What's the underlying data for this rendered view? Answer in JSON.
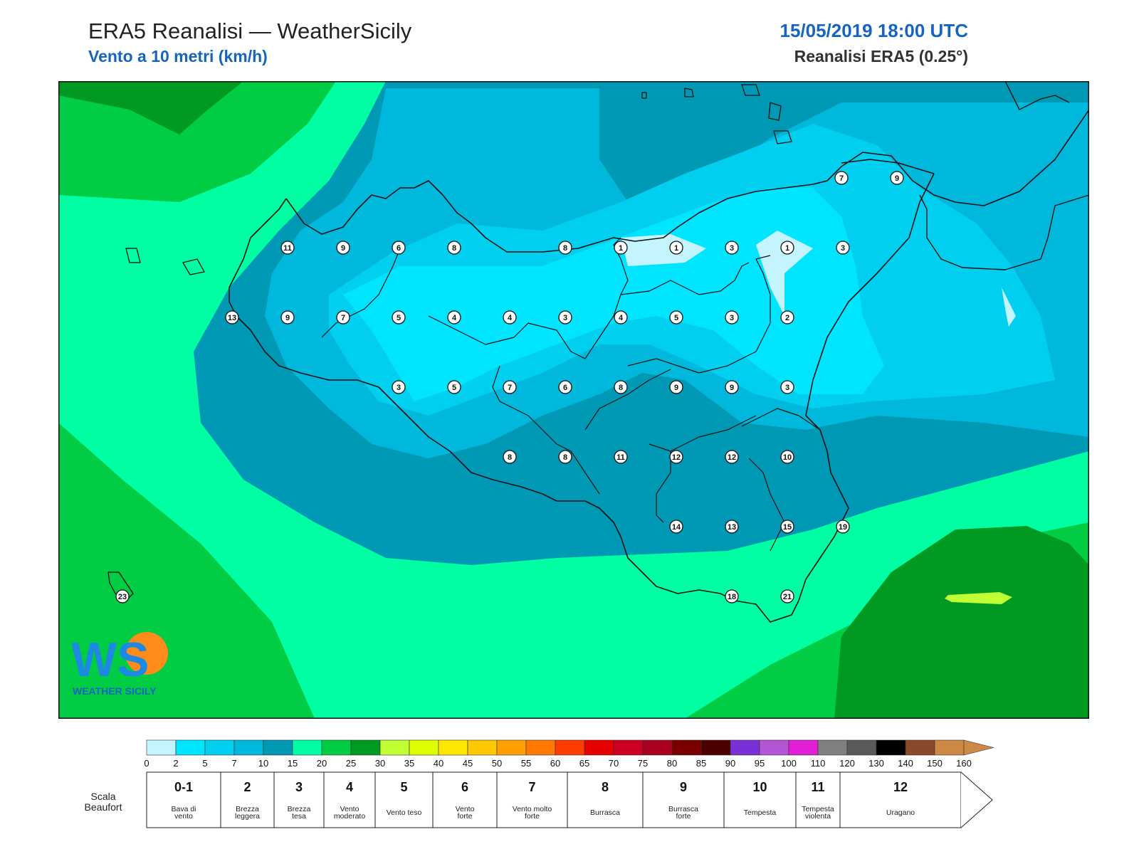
{
  "header": {
    "title": "ERA5 Reanalisi — WeatherSicily",
    "subtitle": "Vento a 10 metri (km/h)",
    "datetime": "15/05/2019 18:00 UTC",
    "model": "Reanalisi ERA5 (0.25°)"
  },
  "logo": {
    "letters": "WS",
    "text": "WEATHER SICILY"
  },
  "chart_data": {
    "type": "heatmap",
    "variable": "wind speed at 10 m",
    "unit": "km/h",
    "stations": [
      {
        "value": "7",
        "lon": 15.56,
        "lat": 38.22
      },
      {
        "value": "9",
        "lon": 15.65,
        "lat": 38.22
      },
      {
        "value": "11",
        "lon": 12.9,
        "lat": 38.1
      },
      {
        "value": "9",
        "lon": 13.0,
        "lat": 38.1
      },
      {
        "value": "6",
        "lon": 13.1,
        "lat": 38.1
      },
      {
        "value": "8",
        "lon": 13.2,
        "lat": 38.1
      },
      {
        "value": "8",
        "lon": 13.4,
        "lat": 38.1
      },
      {
        "value": "1",
        "lon": 13.5,
        "lat": 38.1
      },
      {
        "value": "1",
        "lon": 13.6,
        "lat": 38.1
      },
      {
        "value": "3",
        "lon": 13.7,
        "lat": 38.1
      },
      {
        "value": "1",
        "lon": 13.8,
        "lat": 38.1
      },
      {
        "value": "3",
        "lon": 13.9,
        "lat": 38.1
      },
      {
        "value": "13",
        "lon": 12.5,
        "lat": 37.97
      },
      {
        "value": "9",
        "lon": 12.6,
        "lat": 37.97
      },
      {
        "value": "7",
        "lon": 12.7,
        "lat": 37.97
      },
      {
        "value": "5",
        "lon": 12.8,
        "lat": 37.97
      },
      {
        "value": "4",
        "lon": 12.9,
        "lat": 37.97
      },
      {
        "value": "4",
        "lon": 13.0,
        "lat": 37.97
      },
      {
        "value": "3",
        "lon": 13.1,
        "lat": 37.97
      },
      {
        "value": "4",
        "lon": 13.2,
        "lat": 37.97
      },
      {
        "value": "5",
        "lon": 13.3,
        "lat": 37.97
      },
      {
        "value": "3",
        "lon": 13.4,
        "lat": 37.97
      },
      {
        "value": "2",
        "lon": 13.5,
        "lat": 37.97
      },
      {
        "value": "3",
        "lon": 12.8,
        "lat": 37.85
      },
      {
        "value": "5",
        "lon": 12.9,
        "lat": 37.85
      },
      {
        "value": "7",
        "lon": 13.0,
        "lat": 37.85
      },
      {
        "value": "6",
        "lon": 13.1,
        "lat": 37.85
      },
      {
        "value": "8",
        "lon": 13.2,
        "lat": 37.85
      },
      {
        "value": "9",
        "lon": 13.3,
        "lat": 37.85
      },
      {
        "value": "9",
        "lon": 13.4,
        "lat": 37.85
      },
      {
        "value": "3",
        "lon": 13.5,
        "lat": 37.85
      },
      {
        "value": "8",
        "lon": 13.0,
        "lat": 37.72
      },
      {
        "value": "8",
        "lon": 13.1,
        "lat": 37.72
      },
      {
        "value": "11",
        "lon": 13.2,
        "lat": 37.72
      },
      {
        "value": "12",
        "lon": 13.3,
        "lat": 37.72
      },
      {
        "value": "12",
        "lon": 13.4,
        "lat": 37.72
      },
      {
        "value": "10",
        "lon": 13.5,
        "lat": 37.72
      },
      {
        "value": "14",
        "lon": 13.3,
        "lat": 37.6
      },
      {
        "value": "13",
        "lon": 13.4,
        "lat": 37.6
      },
      {
        "value": "15",
        "lon": 13.5,
        "lat": 37.6
      },
      {
        "value": "19",
        "lon": 13.6,
        "lat": 37.6
      },
      {
        "value": "23",
        "lon": 12.0,
        "lat": 37.47
      },
      {
        "value": "18",
        "lon": 13.4,
        "lat": 37.47
      },
      {
        "value": "21",
        "lon": 13.5,
        "lat": 37.47
      }
    ],
    "colorbar": {
      "ticks": [
        "0",
        "2",
        "5",
        "7",
        "10",
        "15",
        "20",
        "25",
        "30",
        "35",
        "40",
        "45",
        "50",
        "55",
        "60",
        "65",
        "70",
        "75",
        "80",
        "85",
        "90",
        "95",
        "100",
        "110",
        "120",
        "130",
        "140",
        "150",
        "160"
      ],
      "colors": [
        "#c4f5ff",
        "#00e5ff",
        "#00cff0",
        "#00b8dc",
        "#0099b5",
        "#00ffa3",
        "#00cc44",
        "#009922",
        "#c0ff33",
        "#dfff00",
        "#ffe600",
        "#ffc800",
        "#ffa000",
        "#ff7800",
        "#ff3c00",
        "#e60000",
        "#cc0022",
        "#a8001e",
        "#7a0000",
        "#4d0000",
        "#7b2fd6",
        "#b455d6",
        "#e01fd6",
        "#808080",
        "#5a5a5a",
        "#000000",
        "#8a4a2a",
        "#cc8844"
      ]
    },
    "beaufort": {
      "label_line1": "Scala",
      "label_line2": "Beaufort",
      "classes": [
        {
          "num": "0-1",
          "l1": "Bava di",
          "l2": "vento"
        },
        {
          "num": "2",
          "l1": "Brezza",
          "l2": "leggera"
        },
        {
          "num": "3",
          "l1": "Brezza",
          "l2": "tesa"
        },
        {
          "num": "4",
          "l1": "Vento",
          "l2": "moderato"
        },
        {
          "num": "5",
          "l1": "Vento teso",
          "l2": ""
        },
        {
          "num": "6",
          "l1": "Vento",
          "l2": "forte"
        },
        {
          "num": "7",
          "l1": "Vento molto",
          "l2": "forte"
        },
        {
          "num": "8",
          "l1": "Burrasca",
          "l2": ""
        },
        {
          "num": "9",
          "l1": "Burrasca",
          "l2": "forte"
        },
        {
          "num": "10",
          "l1": "Tempesta",
          "l2": ""
        },
        {
          "num": "11",
          "l1": "Tempesta",
          "l2": "violenta"
        },
        {
          "num": "12",
          "l1": "Uragano",
          "l2": ""
        }
      ]
    }
  }
}
